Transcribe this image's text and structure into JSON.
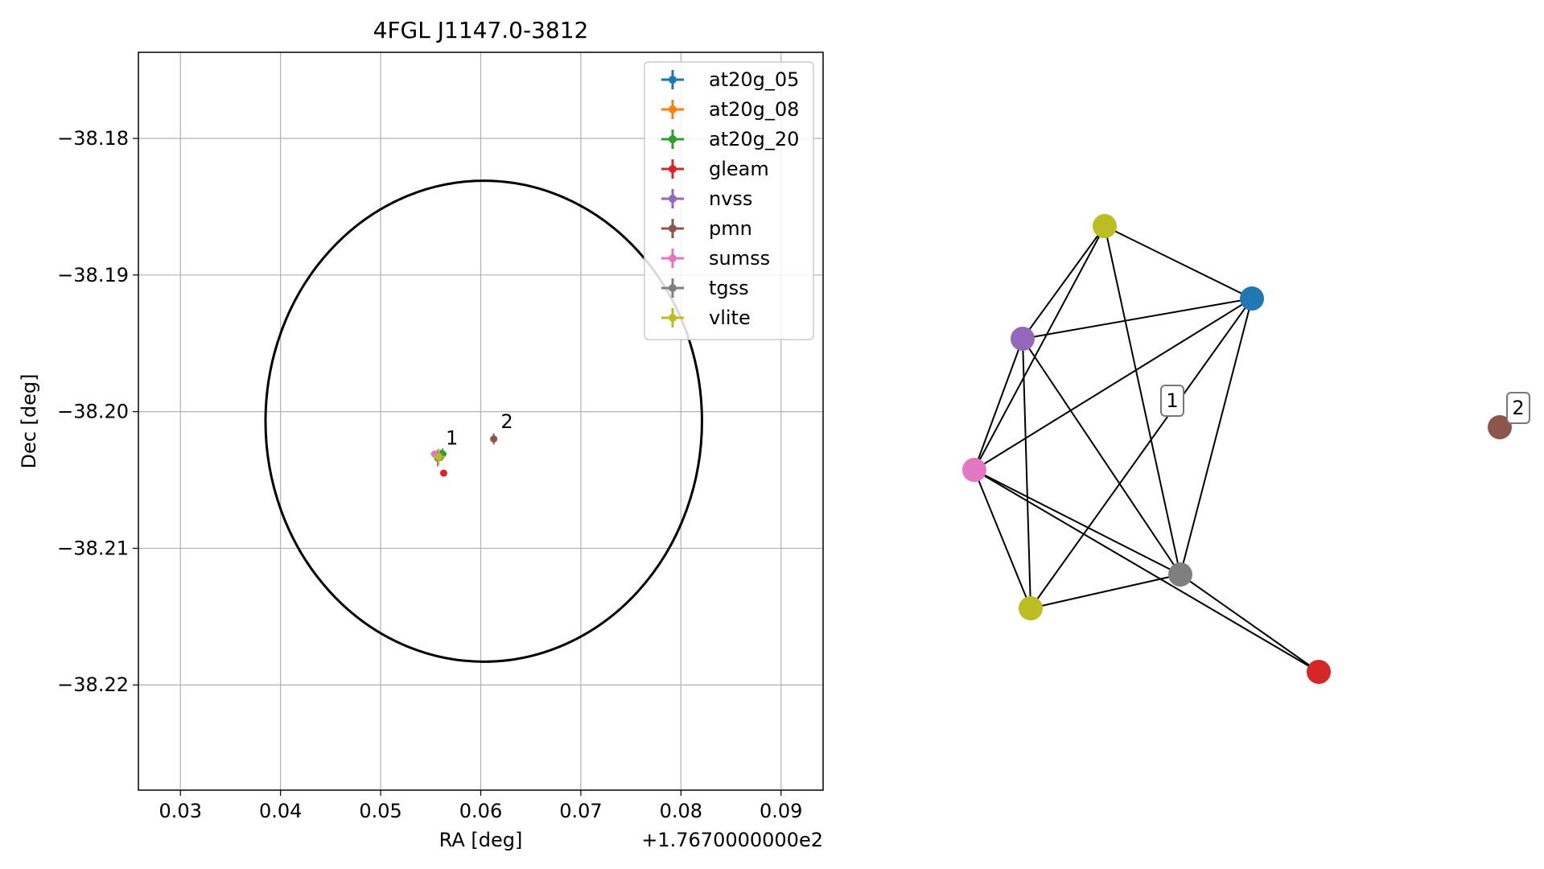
{
  "chart_data": [
    {
      "type": "scatter",
      "title": "4FGL J1147.0-3812",
      "xlabel": "RA [deg]",
      "ylabel": "Dec [deg]",
      "x_offset_label": "+1.7670000000e2",
      "xlim": [
        0.0258,
        0.0942
      ],
      "ylim": [
        -38.2277,
        -38.1737
      ],
      "x_ticks": [
        0.03,
        0.04,
        0.05,
        0.06,
        0.07,
        0.08,
        0.09
      ],
      "x_tick_labels": [
        "0.03",
        "0.04",
        "0.05",
        "0.06",
        "0.07",
        "0.08",
        "0.09"
      ],
      "y_ticks": [
        -38.18,
        -38.19,
        -38.2,
        -38.21,
        -38.22
      ],
      "y_tick_labels": [
        "−38.18",
        "−38.19",
        "−38.20",
        "−38.21",
        "−38.22"
      ],
      "grid": true,
      "legend_position": "top-right",
      "ellipse": {
        "center_x": 0.0603,
        "center_y": -38.2007,
        "semi_x": 0.0218,
        "semi_y": 0.0176,
        "color": "#000000"
      },
      "series": [
        {
          "name": "at20g_05",
          "color": "#1f77b4",
          "x": [
            0.056
          ],
          "y": [
            -38.2032
          ],
          "xerr": 0.0004,
          "yerr": 0.0004
        },
        {
          "name": "at20g_08",
          "color": "#ff7f0e",
          "x": [
            0.0561
          ],
          "y": [
            -38.2032
          ],
          "xerr": 0.0004,
          "yerr": 0.0004
        },
        {
          "name": "at20g_20",
          "color": "#2ca02c",
          "x": [
            0.0562
          ],
          "y": [
            -38.2031
          ],
          "xerr": 0.0004,
          "yerr": 0.0004
        },
        {
          "name": "gleam",
          "color": "#d62728",
          "x": [
            0.0563
          ],
          "y": [
            -38.2045
          ],
          "xerr": 0.0002,
          "yerr": 0.0002
        },
        {
          "name": "nvss",
          "color": "#9467bd",
          "x": [
            0.0558
          ],
          "y": [
            -38.2032
          ],
          "xerr": 0.0002,
          "yerr": 0.0003
        },
        {
          "name": "pmn",
          "color": "#8c564b",
          "x": [
            0.0613
          ],
          "y": [
            -38.202
          ],
          "xerr": 0.0003,
          "yerr": 0.0004
        },
        {
          "name": "sumss",
          "color": "#e377c2",
          "x": [
            0.0554
          ],
          "y": [
            -38.2031
          ],
          "xerr": 0.0004,
          "yerr": 0.0002
        },
        {
          "name": "tgss",
          "color": "#7f7f7f",
          "x": [
            0.0557
          ],
          "y": [
            -38.2034
          ],
          "xerr": 0.0003,
          "yerr": 0.0006
        },
        {
          "name": "vlite",
          "color": "#bcbd22",
          "x": [
            0.0558
          ],
          "y": [
            -38.2033
          ],
          "xerr": 0.0006,
          "yerr": 0.0006
        }
      ],
      "annotations": [
        {
          "text": "1",
          "x": 0.0565,
          "y": -38.2024
        },
        {
          "text": "2",
          "x": 0.062,
          "y": -38.2012
        }
      ]
    },
    {
      "type": "network",
      "nodes": [
        {
          "id": "vlite_a",
          "color": "#bcbd22"
        },
        {
          "id": "at20g",
          "color": "#1f77b4"
        },
        {
          "id": "nvss",
          "color": "#9467bd"
        },
        {
          "id": "sumss",
          "color": "#e377c2"
        },
        {
          "id": "tgss",
          "color": "#7f7f7f"
        },
        {
          "id": "vlite_b",
          "color": "#bcbd22"
        },
        {
          "id": "gleam",
          "color": "#d62728"
        },
        {
          "id": "pmn",
          "color": "#8c564b"
        }
      ],
      "edges": [
        [
          "vlite_a",
          "at20g"
        ],
        [
          "vlite_a",
          "nvss"
        ],
        [
          "vlite_a",
          "sumss"
        ],
        [
          "vlite_a",
          "tgss"
        ],
        [
          "at20g",
          "nvss"
        ],
        [
          "at20g",
          "sumss"
        ],
        [
          "at20g",
          "tgss"
        ],
        [
          "at20g",
          "vlite_b"
        ],
        [
          "nvss",
          "sumss"
        ],
        [
          "nvss",
          "tgss"
        ],
        [
          "nvss",
          "vlite_b"
        ],
        [
          "sumss",
          "tgss"
        ],
        [
          "sumss",
          "vlite_b"
        ],
        [
          "sumss",
          "gleam"
        ],
        [
          "tgss",
          "vlite_b"
        ],
        [
          "tgss",
          "gleam"
        ]
      ],
      "group_labels": [
        {
          "text": "1"
        },
        {
          "text": "2"
        }
      ]
    }
  ]
}
